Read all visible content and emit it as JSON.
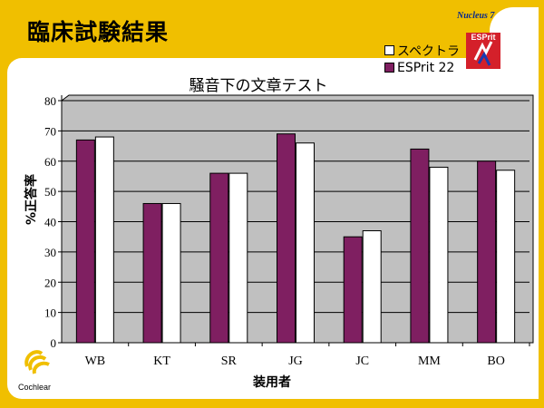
{
  "slide": {
    "title": "臨床試験結果",
    "brand_top": "Nucleus 7",
    "brand_box": "ESPrit",
    "footer_logo": "Cochlear"
  },
  "colors": {
    "frame": "#f0bf00",
    "plot_bg": "#c0c0c0",
    "esprit": "#7f1f61",
    "spectra": "#ffffff",
    "brand_red": "#d4202a"
  },
  "chart_data": {
    "type": "bar",
    "title": "騒音下の文章テスト",
    "xlabel": "装用者",
    "ylabel": "%正答率",
    "ylim": [
      0,
      80
    ],
    "yticks": [
      0,
      10,
      20,
      30,
      40,
      50,
      60,
      70,
      80
    ],
    "categories": [
      "WB",
      "KT",
      "SR",
      "JG",
      "JC",
      "MM",
      "BO"
    ],
    "legend_position": "top-right",
    "series": [
      {
        "name": "ESPrit 22",
        "color": "#7f1f61",
        "values": [
          67,
          46,
          56,
          69,
          35,
          64,
          60
        ]
      },
      {
        "name": "スペクトラ",
        "color": "#ffffff",
        "values": [
          68,
          46,
          56,
          66,
          37,
          58,
          57
        ]
      }
    ]
  }
}
